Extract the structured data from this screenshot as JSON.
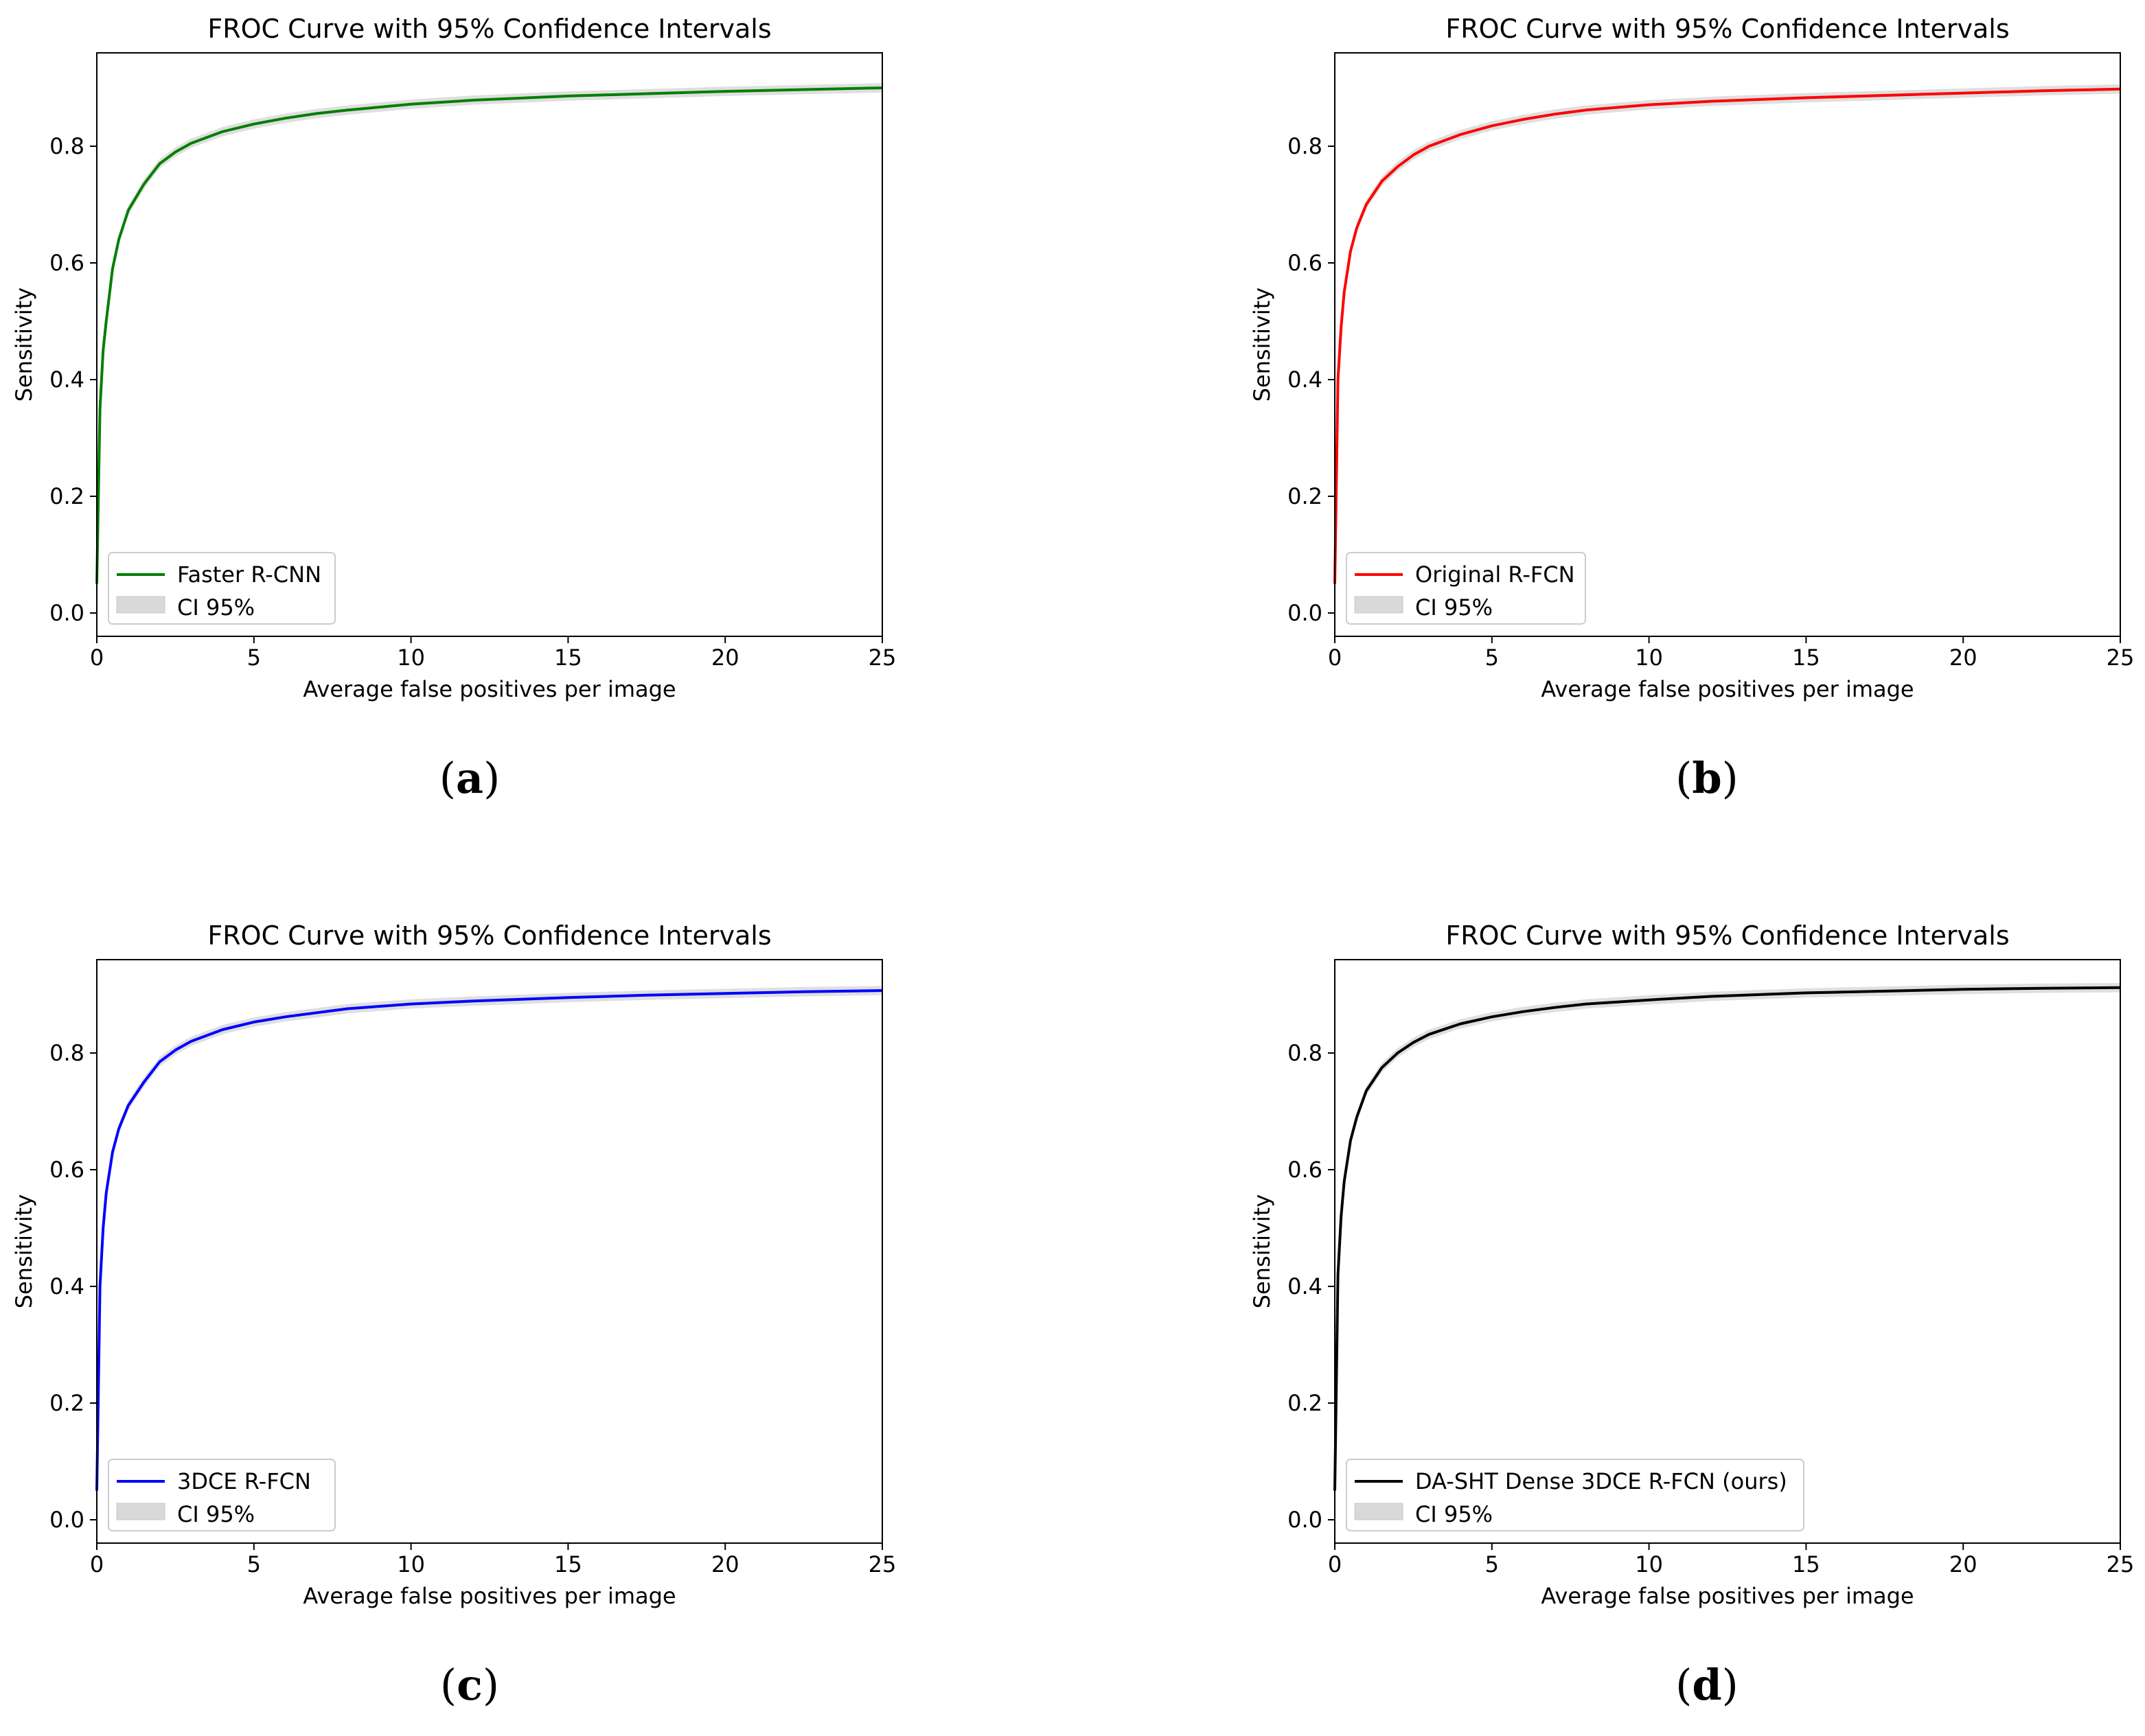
{
  "chart_data": [
    {
      "type": "line",
      "panel": "a",
      "title": "FROC Curve with 95% Confidence Intervals",
      "xlabel": "Average false positives per image",
      "ylabel": "Sensitivity",
      "xlim": [
        0,
        25
      ],
      "ylim": [
        -0.04,
        0.96
      ],
      "xticks": [
        0,
        5,
        10,
        15,
        20,
        25
      ],
      "yticks": [
        0.0,
        0.2,
        0.4,
        0.6,
        0.8
      ],
      "legend_placement": "lower-left",
      "grid": false,
      "series": [
        {
          "name": "Faster R-CNN",
          "color": "#007f00",
          "x": [
            0,
            0.1,
            0.2,
            0.3,
            0.5,
            0.7,
            1.0,
            1.5,
            2.0,
            2.5,
            3.0,
            4.0,
            5.0,
            6.0,
            7.0,
            8.0,
            10.0,
            12.0,
            15.0,
            17.5,
            20.0,
            22.5,
            25.0
          ],
          "values": [
            0.05,
            0.35,
            0.45,
            0.5,
            0.59,
            0.64,
            0.69,
            0.735,
            0.77,
            0.79,
            0.805,
            0.825,
            0.838,
            0.848,
            0.856,
            0.862,
            0.872,
            0.879,
            0.886,
            0.89,
            0.894,
            0.897,
            0.9
          ]
        }
      ],
      "ci_label": "CI 95%",
      "ci_halfwidth": 0.008,
      "caption_label": "a"
    },
    {
      "type": "line",
      "panel": "b",
      "title": "FROC Curve with 95% Confidence Intervals",
      "xlabel": "Average false positives per image",
      "ylabel": "Sensitivity",
      "xlim": [
        0,
        25
      ],
      "ylim": [
        -0.04,
        0.96
      ],
      "xticks": [
        0,
        5,
        10,
        15,
        20,
        25
      ],
      "yticks": [
        0.0,
        0.2,
        0.4,
        0.6,
        0.8
      ],
      "legend_placement": "lower-left",
      "grid": false,
      "series": [
        {
          "name": "Original R-FCN",
          "color": "#ff0000",
          "x": [
            0,
            0.1,
            0.2,
            0.3,
            0.5,
            0.7,
            1.0,
            1.5,
            2.0,
            2.5,
            3.0,
            4.0,
            5.0,
            6.0,
            7.0,
            8.0,
            10.0,
            12.0,
            15.0,
            17.5,
            20.0,
            22.5,
            25.0
          ],
          "values": [
            0.05,
            0.4,
            0.49,
            0.55,
            0.62,
            0.66,
            0.7,
            0.74,
            0.765,
            0.785,
            0.8,
            0.82,
            0.835,
            0.846,
            0.855,
            0.862,
            0.871,
            0.877,
            0.883,
            0.887,
            0.891,
            0.895,
            0.898
          ]
        }
      ],
      "ci_label": "CI 95%",
      "ci_halfwidth": 0.008,
      "caption_label": "b"
    },
    {
      "type": "line",
      "panel": "c",
      "title": "FROC Curve with 95% Confidence Intervals",
      "xlabel": "Average false positives per image",
      "ylabel": "Sensitivity",
      "xlim": [
        0,
        25
      ],
      "ylim": [
        -0.04,
        0.96
      ],
      "xticks": [
        0,
        5,
        10,
        15,
        20,
        25
      ],
      "yticks": [
        0.0,
        0.2,
        0.4,
        0.6,
        0.8
      ],
      "legend_placement": "lower-left",
      "grid": false,
      "series": [
        {
          "name": "3DCE R-FCN",
          "color": "#0000ff",
          "x": [
            0,
            0.1,
            0.2,
            0.3,
            0.5,
            0.7,
            1.0,
            1.5,
            2.0,
            2.5,
            3.0,
            4.0,
            5.0,
            6.0,
            7.0,
            8.0,
            10.0,
            12.0,
            15.0,
            17.5,
            20.0,
            22.5,
            25.0
          ],
          "values": [
            0.05,
            0.4,
            0.5,
            0.56,
            0.63,
            0.67,
            0.71,
            0.75,
            0.785,
            0.805,
            0.82,
            0.84,
            0.853,
            0.862,
            0.869,
            0.876,
            0.884,
            0.889,
            0.895,
            0.899,
            0.902,
            0.905,
            0.907
          ]
        }
      ],
      "ci_label": "CI 95%",
      "ci_halfwidth": 0.008,
      "caption_label": "c"
    },
    {
      "type": "line",
      "panel": "d",
      "title": "FROC Curve with 95% Confidence Intervals",
      "xlabel": "Average false positives per image",
      "ylabel": "Sensitivity",
      "xlim": [
        0,
        25
      ],
      "ylim": [
        -0.04,
        0.96
      ],
      "xticks": [
        0,
        5,
        10,
        15,
        20,
        25
      ],
      "yticks": [
        0.0,
        0.2,
        0.4,
        0.6,
        0.8
      ],
      "legend_placement": "lower-left",
      "grid": false,
      "series": [
        {
          "name": "DA-SHT Dense 3DCE R-FCN (ours)",
          "color": "#000000",
          "x": [
            0,
            0.1,
            0.2,
            0.3,
            0.5,
            0.7,
            1.0,
            1.5,
            2.0,
            2.5,
            3.0,
            4.0,
            5.0,
            6.0,
            7.0,
            8.0,
            10.0,
            12.0,
            15.0,
            17.5,
            20.0,
            22.5,
            25.0
          ],
          "values": [
            0.05,
            0.42,
            0.52,
            0.58,
            0.65,
            0.69,
            0.735,
            0.775,
            0.8,
            0.818,
            0.832,
            0.85,
            0.862,
            0.871,
            0.878,
            0.884,
            0.891,
            0.897,
            0.903,
            0.906,
            0.909,
            0.911,
            0.912
          ]
        }
      ],
      "ci_label": "CI 95%",
      "ci_halfwidth": 0.008,
      "caption_label": "d"
    }
  ],
  "captions": [
    {
      "open": "(",
      "label": "a",
      "close": ")"
    },
    {
      "open": "(",
      "label": "b",
      "close": ")"
    },
    {
      "open": "(",
      "label": "c",
      "close": ")"
    },
    {
      "open": "(",
      "label": "d",
      "close": ")"
    }
  ],
  "colors": {
    "ci_fill": "#d9d9d9",
    "axis": "#000000",
    "legend_border": "#cccccc"
  }
}
